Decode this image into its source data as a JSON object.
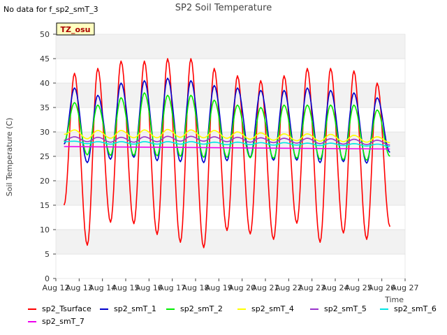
{
  "note": "No data for f_sp2_smT_3",
  "chart_data": {
    "type": "line",
    "title": "SP2 Soil Temperature",
    "xlabel": "Time",
    "ylabel": "Soil Temperature (C)",
    "badge": "TZ_osu",
    "ylim": [
      0,
      50
    ],
    "yticks": [
      0,
      5,
      10,
      15,
      20,
      25,
      30,
      35,
      40,
      45,
      50
    ],
    "xlim": [
      12,
      27
    ],
    "xticks": [
      12,
      13,
      14,
      15,
      16,
      17,
      18,
      19,
      20,
      21,
      22,
      23,
      24,
      25,
      26,
      27
    ],
    "xtick_labels": [
      "Aug 12",
      "Aug 13",
      "Aug 14",
      "Aug 15",
      "Aug 16",
      "Aug 17",
      "Aug 18",
      "Aug 19",
      "Aug 20",
      "Aug 21",
      "Aug 22",
      "Aug 23",
      "Aug 24",
      "Aug 25",
      "Aug 26",
      "Aug 27"
    ],
    "grid": "horizontal bands",
    "legend_position": "bottom",
    "daily_peak_day": [
      12.8,
      13.8,
      14.8,
      15.8,
      16.8,
      17.8,
      18.8,
      19.8,
      20.8,
      21.8,
      22.8,
      23.8,
      24.8,
      25.8
    ],
    "series": [
      {
        "name": "sp2_Tsurface",
        "color": "#ff0000",
        "start": 15.0,
        "max": [
          42,
          43,
          44.5,
          44.5,
          45,
          45,
          43,
          41.5,
          40.5,
          41.5,
          43,
          43,
          42.5,
          40
        ],
        "min": [
          6.8,
          11.5,
          11.2,
          9,
          7.4,
          6.3,
          9.8,
          9.1,
          8,
          11.3,
          7.4,
          9.3,
          8,
          10.6
        ]
      },
      {
        "name": "sp2_smT_1",
        "color": "#0000cc",
        "start": 27.5,
        "max": [
          39,
          37.5,
          40,
          40.5,
          41,
          40.5,
          39.5,
          39,
          38.5,
          38.5,
          39,
          38.5,
          38,
          37
        ],
        "min": [
          23.7,
          24.4,
          24.8,
          24.1,
          23.9,
          23.7,
          24.1,
          24.8,
          24.2,
          24.2,
          23.7,
          23.9,
          23.6,
          25.8
        ]
      },
      {
        "name": "sp2_smT_2",
        "color": "#00ee00",
        "start": 28.0,
        "max": [
          36,
          35.5,
          37,
          38,
          37.5,
          37.5,
          36.5,
          35.5,
          35,
          35.5,
          35.5,
          35.5,
          35.5,
          34.5
        ],
        "min": [
          25.3,
          25.2,
          25.2,
          25.1,
          25,
          24.8,
          24.8,
          24.7,
          24.6,
          24.6,
          24.4,
          24.3,
          24.2,
          25
        ]
      },
      {
        "name": "sp2_smT_4",
        "color": "#ffff00",
        "start": 29.5,
        "max": [
          30.4,
          30.3,
          30.3,
          30.4,
          30.5,
          30.4,
          30.3,
          30,
          29.8,
          29.6,
          29.6,
          29.5,
          29.3,
          29
        ],
        "min": [
          28.6,
          28.7,
          28.8,
          28.8,
          28.9,
          28.8,
          28.7,
          28.5,
          28.3,
          28.2,
          28.1,
          28,
          27.9,
          27.8
        ]
      },
      {
        "name": "sp2_smT_5",
        "color": "#9933cc",
        "start": 28.3,
        "max": [
          29,
          28.9,
          28.9,
          29,
          29.1,
          29.1,
          29,
          28.9,
          28.8,
          28.7,
          28.7,
          28.6,
          28.5,
          28.3
        ],
        "min": [
          28,
          27.9,
          27.9,
          28,
          28.1,
          28.1,
          28,
          27.9,
          27.8,
          27.7,
          27.6,
          27.5,
          27.4,
          27.3
        ]
      },
      {
        "name": "sp2_smT_6",
        "color": "#00e5e5",
        "start": 28.0,
        "max": [
          28.1,
          28,
          28,
          28,
          28,
          28,
          27.9,
          27.9,
          27.8,
          27.8,
          27.7,
          27.7,
          27.6,
          27.5
        ],
        "min": [
          27.6,
          27.5,
          27.5,
          27.5,
          27.5,
          27.5,
          27.4,
          27.4,
          27.3,
          27.3,
          27.2,
          27.2,
          27.1,
          27
        ]
      },
      {
        "name": "sp2_smT_7",
        "color": "#ee00ee",
        "flat": [
          27.0,
          26.5
        ]
      }
    ]
  }
}
